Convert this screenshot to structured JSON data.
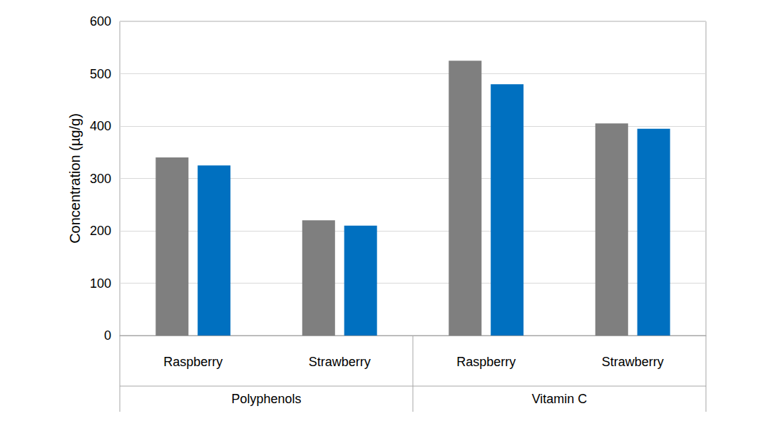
{
  "chart_data": {
    "type": "bar",
    "categories": [
      "Raspberry",
      "Strawberry",
      "Raspberry",
      "Strawberry"
    ],
    "groups": [
      {
        "label": "Polyphenols",
        "count": 2
      },
      {
        "label": "Vitamin C",
        "count": 2
      }
    ],
    "y_label": "Concentration (µg/g)",
    "series": [
      {
        "color": "#7f7f7f",
        "values": [
          340,
          220,
          525,
          405
        ]
      },
      {
        "color": "#0070c0",
        "values": [
          325,
          210,
          480,
          395
        ]
      }
    ],
    "ylim": [
      0,
      600
    ],
    "yticks": [
      0,
      100,
      200,
      300,
      400,
      500,
      600
    ],
    "grid": true
  }
}
